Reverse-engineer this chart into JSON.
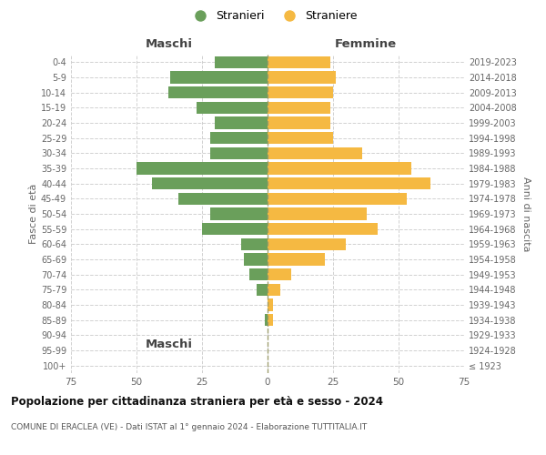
{
  "age_groups": [
    "100+",
    "95-99",
    "90-94",
    "85-89",
    "80-84",
    "75-79",
    "70-74",
    "65-69",
    "60-64",
    "55-59",
    "50-54",
    "45-49",
    "40-44",
    "35-39",
    "30-34",
    "25-29",
    "20-24",
    "15-19",
    "10-14",
    "5-9",
    "0-4"
  ],
  "birth_years": [
    "≤ 1923",
    "1924-1928",
    "1929-1933",
    "1934-1938",
    "1939-1943",
    "1944-1948",
    "1949-1953",
    "1954-1958",
    "1959-1963",
    "1964-1968",
    "1969-1973",
    "1974-1978",
    "1979-1983",
    "1984-1988",
    "1989-1993",
    "1994-1998",
    "1999-2003",
    "2004-2008",
    "2009-2013",
    "2014-2018",
    "2019-2023"
  ],
  "maschi": [
    0,
    0,
    0,
    1,
    0,
    4,
    7,
    9,
    10,
    25,
    22,
    34,
    44,
    50,
    22,
    22,
    20,
    27,
    38,
    37,
    20
  ],
  "femmine": [
    0,
    0,
    0,
    2,
    2,
    5,
    9,
    22,
    30,
    42,
    38,
    53,
    62,
    55,
    36,
    25,
    24,
    24,
    25,
    26,
    24
  ],
  "male_color": "#6a9f5b",
  "female_color": "#f5b942",
  "background_color": "#ffffff",
  "grid_color": "#cccccc",
  "title": "Popolazione per cittadinanza straniera per età e sesso - 2024",
  "subtitle": "COMUNE DI ERACLEA (VE) - Dati ISTAT al 1° gennaio 2024 - Elaborazione TUTTITALIA.IT",
  "xlabel_left": "Maschi",
  "xlabel_right": "Femmine",
  "ylabel_left": "Fasce di età",
  "ylabel_right": "Anni di nascita",
  "legend_male": "Stranieri",
  "legend_female": "Straniere",
  "xlim": 75,
  "bar_height": 0.8
}
